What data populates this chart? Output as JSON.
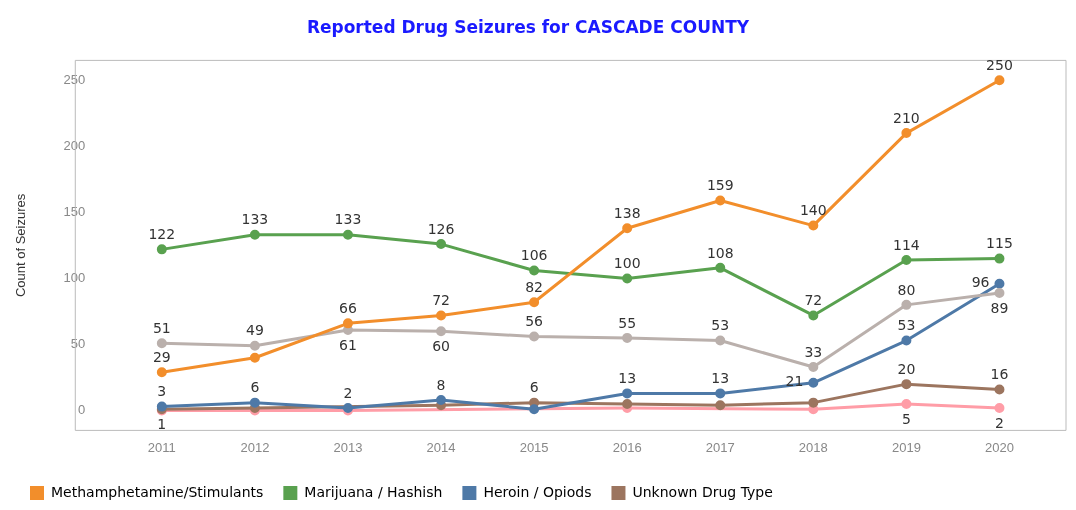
{
  "chart_data": {
    "type": "line",
    "title": "Reported Drug Seizures for CASCADE COUNTY",
    "ylabel": "Count of Seizures",
    "categories": [
      "2011",
      "2012",
      "2013",
      "2014",
      "2015",
      "2016",
      "2017",
      "2018",
      "2019",
      "2020"
    ],
    "ylim": [
      -15,
      265
    ],
    "yticks": [
      0,
      50,
      100,
      150,
      200,
      250
    ],
    "grid": false,
    "legend": "bottom",
    "marker": "circle",
    "line_style": "solid",
    "series": [
      {
        "name": "Methamphetamine/Stimulants",
        "color": "#f28e2b",
        "values": [
          29,
          40,
          66,
          72,
          82,
          138,
          159,
          140,
          210,
          250
        ],
        "value_labels": [
          "29",
          null,
          "66",
          "72",
          "82",
          "138",
          "159",
          "140",
          "210",
          "250"
        ]
      },
      {
        "name": "Marijuana / Hashish",
        "color": "#59a14f",
        "values": [
          122,
          133,
          133,
          126,
          106,
          100,
          108,
          72,
          114,
          115
        ],
        "value_labels": [
          "122",
          "133",
          "133",
          "126",
          "106",
          "100",
          "108",
          "72",
          "114",
          "115"
        ]
      },
      {
        "color": "#bab0ac",
        "values": [
          51,
          49,
          61,
          60,
          56,
          55,
          53,
          33,
          80,
          89
        ],
        "value_labels": [
          "51",
          "49",
          "61",
          "60",
          "56",
          "55",
          "53",
          "33",
          "80",
          "89"
        ]
      },
      {
        "name": "Heroin / Opiods",
        "color": "#4e79a7",
        "values": [
          3,
          6,
          2,
          8,
          1,
          13,
          13,
          21,
          53,
          96
        ],
        "value_labels": [
          "3",
          "6",
          "2",
          "8",
          null,
          "13",
          "13",
          "21",
          "53",
          "96"
        ]
      },
      {
        "name": "Unknown Drug Type",
        "color": "#9c755f",
        "values": [
          1,
          2,
          null,
          4,
          6,
          5,
          4,
          6,
          20,
          16
        ],
        "value_labels": [
          "1",
          null,
          null,
          null,
          "6",
          null,
          null,
          null,
          "20",
          "16"
        ]
      },
      {
        "color": "#ff9da7",
        "values": [
          0,
          0,
          0,
          null,
          null,
          2,
          null,
          1,
          5,
          2
        ],
        "value_labels": [
          null,
          null,
          null,
          null,
          null,
          null,
          null,
          null,
          "5",
          "2"
        ]
      }
    ]
  }
}
